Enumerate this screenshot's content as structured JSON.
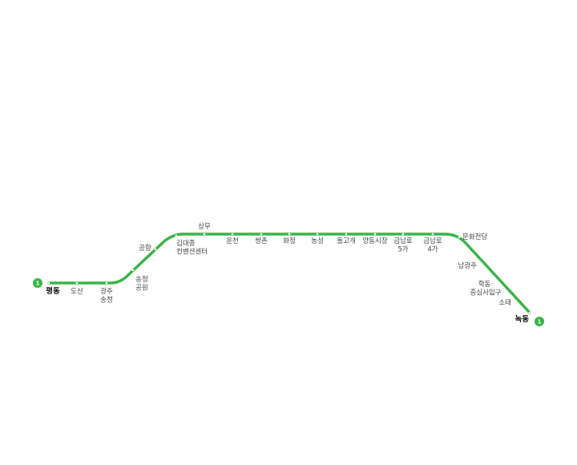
{
  "line": {
    "number": "1",
    "color": "#3cb44a",
    "tick_color": "#ffffff"
  },
  "stations": [
    {
      "id": "pyeongdong",
      "lines": [
        "평동"
      ],
      "terminal": true
    },
    {
      "id": "dosan",
      "lines": [
        "도산"
      ]
    },
    {
      "id": "gwangju-songjeong",
      "lines": [
        "광주",
        "송정"
      ]
    },
    {
      "id": "songjeong-park",
      "lines": [
        "송정",
        "공원"
      ]
    },
    {
      "id": "airport",
      "lines": [
        "공항"
      ]
    },
    {
      "id": "kimdaejung-center",
      "lines": [
        "김대중",
        "컨벤션센터"
      ]
    },
    {
      "id": "sangmu",
      "lines": [
        "상무"
      ]
    },
    {
      "id": "uncheon",
      "lines": [
        "운천"
      ]
    },
    {
      "id": "ssangchon",
      "lines": [
        "쌍촌"
      ]
    },
    {
      "id": "hwajeong",
      "lines": [
        "화정"
      ]
    },
    {
      "id": "nongseong",
      "lines": [
        "농성"
      ]
    },
    {
      "id": "dolgogae",
      "lines": [
        "돌고개"
      ]
    },
    {
      "id": "yangdong-market",
      "lines": [
        "양동시장"
      ]
    },
    {
      "id": "geumnamro-5ga",
      "lines": [
        "금남로",
        "5가"
      ]
    },
    {
      "id": "geumnamro-4ga",
      "lines": [
        "금남로",
        "4가"
      ]
    },
    {
      "id": "culture-complex",
      "lines": [
        "문화전당"
      ]
    },
    {
      "id": "namgwangju",
      "lines": [
        "남광주"
      ]
    },
    {
      "id": "hakdong",
      "lines": [
        "학동·",
        "증심사입구"
      ]
    },
    {
      "id": "sotae",
      "lines": [
        "소태"
      ]
    },
    {
      "id": "nokdong",
      "lines": [
        "녹동"
      ],
      "terminal": true
    }
  ]
}
